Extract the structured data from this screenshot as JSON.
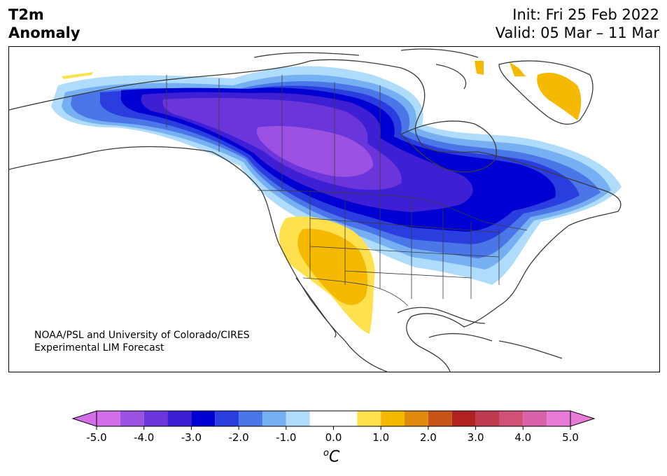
{
  "header": {
    "variable_line1": "T2m",
    "variable_line2": "Anomaly",
    "init": "Init: Fri 25 Feb 2022",
    "valid": "Valid: 05 Mar – 11 Mar"
  },
  "credit": {
    "line1": "NOAA/PSL and University of Colorado/CIRES",
    "line2": "Experimental LIM Forecast"
  },
  "colorbar": {
    "unit_symbol": "o",
    "unit_letter": "C",
    "tick_labels": [
      "-5.0",
      "-4.0",
      "-3.0",
      "-2.0",
      "-1.0",
      "0.0",
      "1.0",
      "2.0",
      "3.0",
      "4.0",
      "5.0"
    ],
    "levels": [
      -5.0,
      -4.5,
      -4.0,
      -3.5,
      -3.0,
      -2.5,
      -2.0,
      -1.5,
      -1.0,
      -0.5,
      0.5,
      1.0,
      1.5,
      2.0,
      2.5,
      3.0,
      3.5,
      4.0,
      4.5,
      5.0
    ],
    "colors": [
      "#d26fe8",
      "#9b52e3",
      "#6b35dc",
      "#3f1fd4",
      "#0000d2",
      "#2a3ee0",
      "#4a76e8",
      "#76b0f2",
      "#aedcfa",
      "#ffffff",
      "#ffe150",
      "#f5b900",
      "#e08a10",
      "#c85418",
      "#b02222",
      "#c03a50",
      "#d05078",
      "#d862a8",
      "#e87ad8"
    ],
    "extend_low_color": "#d26fe8",
    "extend_high_color": "#e87ad8"
  }
}
